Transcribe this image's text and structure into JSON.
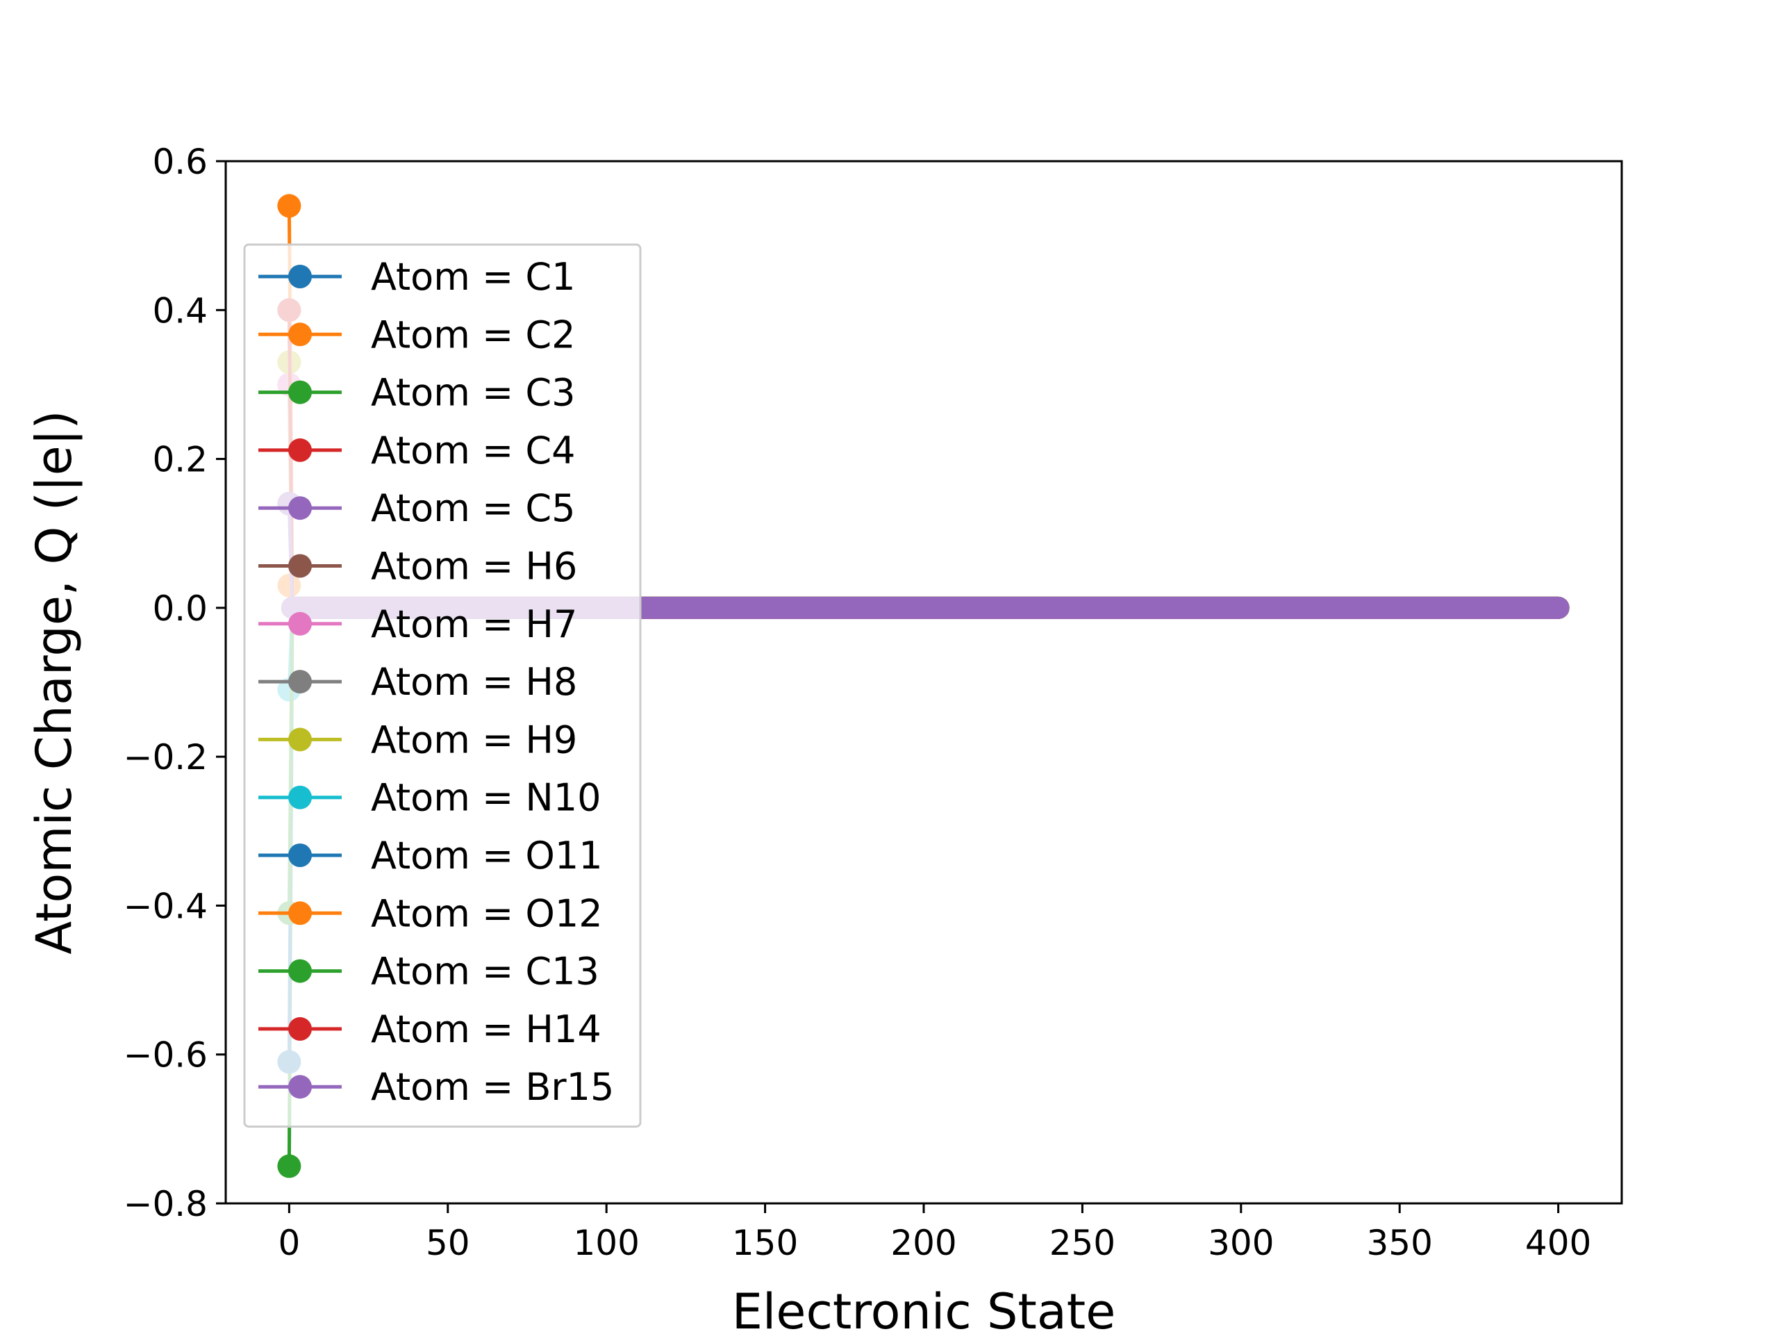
{
  "chart_data": {
    "type": "line",
    "title": "",
    "xlabel": "Electronic State",
    "ylabel": "Atomic Charge, Q (|e|)",
    "xlim": [
      -20,
      420
    ],
    "ylim": [
      -0.8,
      0.6
    ],
    "x_ticks": [
      {
        "value": 0,
        "label": "0"
      },
      {
        "value": 50,
        "label": "50"
      },
      {
        "value": 100,
        "label": "100"
      },
      {
        "value": 150,
        "label": "150"
      },
      {
        "value": 200,
        "label": "200"
      },
      {
        "value": 250,
        "label": "250"
      },
      {
        "value": 300,
        "label": "300"
      },
      {
        "value": 350,
        "label": "350"
      },
      {
        "value": 400,
        "label": "400"
      }
    ],
    "y_ticks": [
      {
        "value": 0.6,
        "label": "0.6"
      },
      {
        "value": 0.4,
        "label": "0.4"
      },
      {
        "value": 0.2,
        "label": "0.2"
      },
      {
        "value": 0.0,
        "label": "0.0"
      },
      {
        "value": -0.2,
        "label": "−0.2"
      },
      {
        "value": -0.4,
        "label": "−0.4"
      },
      {
        "value": -0.6,
        "label": "−0.6"
      },
      {
        "value": -0.8,
        "label": "−0.8"
      }
    ],
    "grid": false,
    "legend_position": "upper-left",
    "x_range": [
      0,
      400
    ],
    "series": [
      {
        "name": "Atom = C1",
        "color": "#1f77b4",
        "initial": 0.14,
        "final": 0.0
      },
      {
        "name": "Atom = C2",
        "color": "#ff7f0e",
        "initial": 0.54,
        "final": 0.0
      },
      {
        "name": "Atom = C3",
        "color": "#2ca02c",
        "initial": -0.75,
        "final": 0.0
      },
      {
        "name": "Atom = C4",
        "color": "#d62728",
        "initial": 0.4,
        "final": 0.0
      },
      {
        "name": "Atom = C5",
        "color": "#9467bd",
        "initial": 0.14,
        "final": 0.0
      },
      {
        "name": "Atom = H6",
        "color": "#8c564b",
        "initial": 0.3,
        "final": 0.0
      },
      {
        "name": "Atom = H7",
        "color": "#e377c2",
        "initial": 0.3,
        "final": 0.0
      },
      {
        "name": "Atom = H8",
        "color": "#7f7f7f",
        "initial": 0.33,
        "final": 0.0
      },
      {
        "name": "Atom = H9",
        "color": "#bcbd22",
        "initial": 0.33,
        "final": 0.0
      },
      {
        "name": "Atom = N10",
        "color": "#17becf",
        "initial": -0.11,
        "final": 0.0
      },
      {
        "name": "Atom = O11",
        "color": "#1f77b4",
        "initial": -0.61,
        "final": 0.0
      },
      {
        "name": "Atom = O12",
        "color": "#ff7f0e",
        "initial": 0.03,
        "final": 0.0
      },
      {
        "name": "Atom = C13",
        "color": "#2ca02c",
        "initial": -0.41,
        "final": 0.0
      },
      {
        "name": "Atom = H14",
        "color": "#d62728",
        "initial": 0.4,
        "final": 0.0
      },
      {
        "name": "Atom = Br15",
        "color": "#9467bd",
        "initial": 0.14,
        "final": 0.0
      }
    ]
  }
}
